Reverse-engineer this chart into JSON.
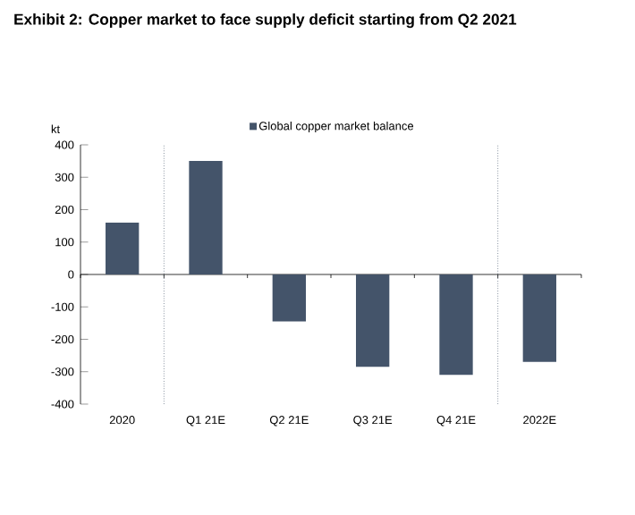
{
  "chart_data": {
    "type": "bar",
    "title": "Exhibit 2: Copper market to face supply deficit starting from Q2 2021",
    "ylabel": "kt",
    "categories": [
      "2020",
      "Q1 21E",
      "Q2 21E",
      "Q3 21E",
      "Q4 21E",
      "2022E"
    ],
    "series": [
      {
        "name": "Global copper market balance",
        "color": "#44546a",
        "values": [
          160,
          350,
          -145,
          -285,
          -310,
          -270
        ]
      }
    ],
    "ylim": [
      -400,
      400
    ],
    "yticks": [
      -400,
      -300,
      -200,
      -100,
      0,
      100,
      200,
      300,
      400
    ],
    "legend": "top",
    "grid": false
  }
}
